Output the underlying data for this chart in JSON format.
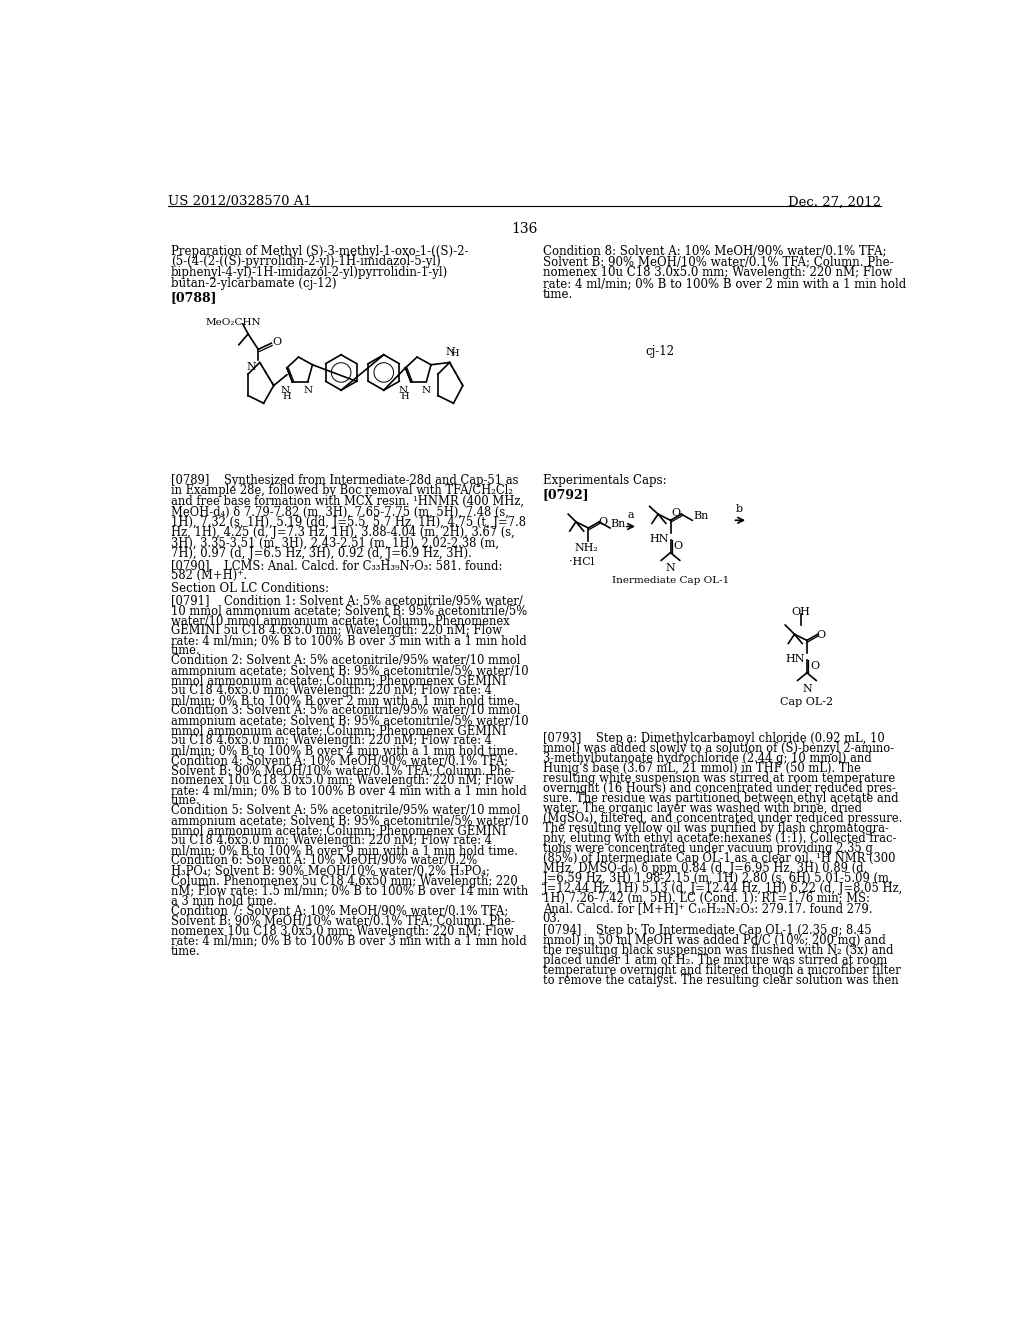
{
  "background_color": "#ffffff",
  "header_left": "US 2012/0328570 A1",
  "header_right": "Dec. 27, 2012",
  "page_number": "136",
  "title_line1": "Preparation of Methyl (S)-3-methyl-1-oxo-1-((S)-2-",
  "title_line2": "(5-(4-(2-((S)-pyrrolidin-2-yl)-1H-imidazol-5-yl)",
  "title_line3": "biphenyl-4-yl)-1H-imidazol-2-yl)pyrrolidin-1-yl)",
  "title_line4": "butan-2-ylcarbamate (cj-12)",
  "cond8_line1": "Condition 8: Solvent A: 10% MeOH/90% water/0.1% TFA;",
  "cond8_line2": "Solvent B: 90% MeOH/10% water/0.1% TFA; Column. Phe-",
  "cond8_line3": "nomenex 10u C18 3.0x5.0 mm; Wavelength: 220 nM; Flow",
  "cond8_line4": "rate: 4 ml/min; 0% B to 100% B over 2 min with a 1 min hold",
  "cond8_line5": "time.",
  "tag0788": "[0788]",
  "cj12_label": "cj-12",
  "tag0789_lines": [
    "[0789]    Synthesized from Intermediate-28d and Cap-51 as",
    "in Example 28e, followed by Boc removal with TFA/CH₂Cl₂",
    "and free base formation with MCX resin. ¹HNMR (400 MHz,",
    "MeOH-d₄) δ 7.79-7.82 (m, 3H), 7.65-7.75 (m, 5H), 7.48 (s,",
    "1H), 7.32 (s, 1H), 5.19 (dd, J=5.5, 5.7 Hz, 1H), 4.75 (t, J=7.8",
    "Hz, 1H), 4.25 (d, J=7.3 Hz, 1H), 3.88-4.04 (m, 2H), 3.67 (s,",
    "3H), 3.35-3.51 (m, 3H), 2.43-2.51 (m, 1H), 2.02-2.38 (m,",
    "7H), 0.97 (d, J=6.5 Hz, 3H), 0.92 (d, J=6.9 Hz, 3H)."
  ],
  "tag0790_lines": [
    "[0790]    LCMS: Anal. Calcd. for C₃₃H₃₉N₇O₃: 581. found:",
    "582 (M+H)⁺."
  ],
  "section_ol": "Section OL LC Conditions:",
  "tag0791_lines": [
    "[0791]    Condition 1: Solvent A: 5% acetonitrile/95% water/",
    "10 mmol ammonium acetate; Solvent B: 95% acetonitrile/5%",
    "water/10 mmol ammonium acetate; Column. Phenomenex",
    "GEMINI 5u C18 4.6x5.0 mm; Wavelength: 220 nM; Flow",
    "rate: 4 ml/min; 0% B to 100% B over 3 min with a 1 min hold",
    "time.",
    "Condition 2: Solvent A: 5% acetonitrile/95% water/10 mmol",
    "ammonium acetate; Solvent B: 95% acetonitrile/5% water/10",
    "mmol ammonium acetate; Column: Phenomenex GEMINI",
    "5u C18 4.6x5.0 mm; Wavelength: 220 nM; Flow rate: 4",
    "ml/min; 0% B to 100% B over 2 min with a 1 min hold time.",
    "Condition 3: Solvent A: 5% acetonitrile/95% water/10 mmol",
    "ammonium acetate; Solvent B: 95% acetonitrile/5% water/10",
    "mmol ammonium acetate; Column: Phenomenex GEMINI",
    "5u C18 4.6x5.0 mm; Wavelength: 220 nM; Flow rate: 4",
    "ml/min; 0% B to 100% B over 4 min with a 1 min hold time.",
    "Condition 4: Solvent A: 10% MeOH/90% water/0.1% TFA;",
    "Solvent B: 90% MeOH/10% water/0.1% TFA; Column. Phe-",
    "nomenex 10u C18 3.0x5.0 mm; Wavelength: 220 nM; Flow",
    "rate: 4 ml/min; 0% B to 100% B over 4 min with a 1 min hold",
    "time.",
    "Condition 5: Solvent A: 5% acetonitrile/95% water/10 mmol",
    "ammonium acetate; Solvent B: 95% acetonitrile/5% water/10",
    "mmol ammonium acetate; Column: Phenomenex GEMINI",
    "5u C18 4.6x5.0 mm; Wavelength: 220 nM; Flow rate: 4",
    "ml/min; 0% B to 100% B over 9 min with a 1 min hold time.",
    "Condition 6: Solvent A: 10% MeOH/90% water/0.2%",
    "H₃PO₄; Solvent B: 90% MeOH/10% water/0.2% H₃PO₄;",
    "Column. Phenomenex 5u C18 4.6x50 mm; Wavelength: 220",
    "nM; Flow rate: 1.5 ml/min; 0% B to 100% B over 14 min with",
    "a 3 min hold time.",
    "Condition 7: Solvent A: 10% MeOH/90% water/0.1% TFA;",
    "Solvent B: 90% MeOH/10% water/0.1% TFA; Column. Phe-",
    "nomenex 10u C18 3.0x5.0 mm; Wavelength: 220 nM; Flow",
    "rate: 4 ml/min; 0% B to 100% B over 3 min with a 1 min hold",
    "time."
  ],
  "experimentals_caps": "Experimentals Caps:",
  "tag0792": "[0792]",
  "tag0793_lines": [
    "[0793]    Step a: Dimethylcarbamoyl chloride (0.92 mL, 10",
    "mmol) was added slowly to a solution of (S)-benzyl 2-amino-",
    "3-methylbutanoate hydrochloride (2.44 g; 10 mmol) and",
    "Hunig’s base (3.67 mL, 21 mmol) in THF (50 mL). The",
    "resulting white suspension was stirred at room temperature",
    "overnight (16 Hours) and concentrated under reduced pres-",
    "sure. The residue was partitioned between ethyl acetate and",
    "water. The organic layer was washed with brine, dried",
    "(MgSO₄), filtered, and concentrated under reduced pressure.",
    "The resulting yellow oil was purified by flash chromatogra-",
    "phy, eluting with ethyl acetate:hexanes (1:1). Collected frac-",
    "tions were concentrated under vacuum providing 2.35 g",
    "(85%) of Intermediate Cap OL-1 as a clear oil. ¹H NMR (300",
    "MHz, DMSO-d₆) δ ppm 0.84 (d, J=6.95 Hz, 3H) 0.89 (d,",
    "J=6.59 Hz, 3H) 1.98-2.15 (m, 1H) 2.80 (s, 6H) 5.01-5.09 (m,",
    "J=12.44 Hz, 1H) 5.13 (d, J=12.44 Hz, 1H) 6.22 (d, J=8.05 Hz,",
    "1H) 7.26-7.42 (m, 5H). LC (Cond. 1): RT=1.76 min; MS:",
    "Anal. Calcd. for [M+H]⁺ C₁₆H₂₂N₂O₃: 279.17. found 279.",
    "03."
  ],
  "tag0794_lines": [
    "[0794]    Step b: To Intermediate Cap OL-1 (2.35 g; 8.45",
    "mmol) in 50 ml MeOH was added Pd/C (10%; 200 mg) and",
    "the resulting black suspension was flushed with N₂ (3x) and",
    "placed under 1 atm of H₂. The mixture was stirred at room",
    "temperature overnight and filtered though a microfiber filter",
    "to remove the catalyst. The resulting clear solution was then"
  ]
}
